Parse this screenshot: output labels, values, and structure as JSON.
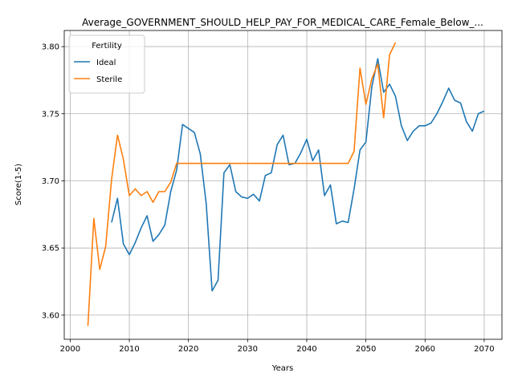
{
  "chart_data": {
    "type": "line",
    "title": "Average_GOVERNMENT_SHOULD_HELP_PAY_FOR_MEDICAL_CARE_Female_Below_...",
    "xlabel": "Years",
    "ylabel": "Score(1-5)",
    "xlim": [
      1999,
      2073
    ],
    "ylim": [
      3.582,
      3.812
    ],
    "xticks": [
      2000,
      2010,
      2020,
      2030,
      2040,
      2050,
      2060,
      2070
    ],
    "yticks": [
      3.6,
      3.65,
      3.7,
      3.75,
      3.8
    ],
    "ytick_labels": [
      "3.60",
      "3.65",
      "3.70",
      "3.75",
      "3.80"
    ],
    "grid": true,
    "legend": {
      "title": "Fertility",
      "placement": "upper-left"
    },
    "series": [
      {
        "name": "Ideal",
        "color": "#1f77b4",
        "x": [
          2007,
          2008,
          2009,
          2010,
          2011,
          2012,
          2013,
          2014,
          2015,
          2016,
          2017,
          2018,
          2019,
          2020,
          2021,
          2022,
          2023,
          2024,
          2025,
          2026,
          2027,
          2028,
          2029,
          2030,
          2031,
          2032,
          2033,
          2034,
          2035,
          2036,
          2037,
          2038,
          2039,
          2040,
          2041,
          2042,
          2043,
          2044,
          2045,
          2046,
          2047,
          2048,
          2049,
          2050,
          2051,
          2052,
          2053,
          2054,
          2055,
          2056,
          2057,
          2058,
          2059,
          2060,
          2061,
          2062,
          2063,
          2064,
          2065,
          2066,
          2067,
          2068,
          2069,
          2070
        ],
        "y": [
          3.669,
          3.687,
          3.653,
          3.645,
          3.654,
          3.665,
          3.674,
          3.655,
          3.66,
          3.667,
          3.692,
          3.708,
          3.742,
          3.739,
          3.736,
          3.72,
          3.683,
          3.618,
          3.626,
          3.706,
          3.712,
          3.692,
          3.688,
          3.687,
          3.69,
          3.685,
          3.704,
          3.706,
          3.727,
          3.734,
          3.712,
          3.713,
          3.721,
          3.731,
          3.715,
          3.723,
          3.689,
          3.697,
          3.668,
          3.67,
          3.669,
          3.694,
          3.723,
          3.729,
          3.77,
          3.791,
          3.766,
          3.772,
          3.763,
          3.741,
          3.73,
          3.737,
          3.741,
          3.741,
          3.743,
          3.75,
          3.759,
          3.769,
          3.76,
          3.758,
          3.744,
          3.737,
          3.75,
          3.752
        ]
      },
      {
        "name": "Sterile",
        "color": "#ff7f0e",
        "x": [
          2003,
          2004,
          2005,
          2006,
          2007,
          2008,
          2009,
          2010,
          2011,
          2012,
          2013,
          2014,
          2015,
          2016,
          2017,
          2018,
          2019,
          2020,
          2021,
          2022,
          2023,
          2024,
          2025,
          2026,
          2027,
          2028,
          2029,
          2030,
          2031,
          2032,
          2033,
          2034,
          2035,
          2036,
          2037,
          2038,
          2039,
          2040,
          2041,
          2042,
          2043,
          2044,
          2045,
          2046,
          2047,
          2048,
          2049,
          2050,
          2051,
          2052,
          2053,
          2054,
          2055
        ],
        "y": [
          3.592,
          3.672,
          3.634,
          3.651,
          3.701,
          3.734,
          3.716,
          3.689,
          3.694,
          3.689,
          3.692,
          3.684,
          3.692,
          3.692,
          3.699,
          3.713,
          3.713,
          3.713,
          3.713,
          3.713,
          3.713,
          3.713,
          3.713,
          3.713,
          3.713,
          3.713,
          3.713,
          3.713,
          3.713,
          3.713,
          3.713,
          3.713,
          3.713,
          3.713,
          3.713,
          3.713,
          3.713,
          3.713,
          3.713,
          3.713,
          3.713,
          3.713,
          3.713,
          3.713,
          3.713,
          3.722,
          3.784,
          3.757,
          3.776,
          3.787,
          3.747,
          3.794,
          3.803
        ]
      }
    ]
  }
}
